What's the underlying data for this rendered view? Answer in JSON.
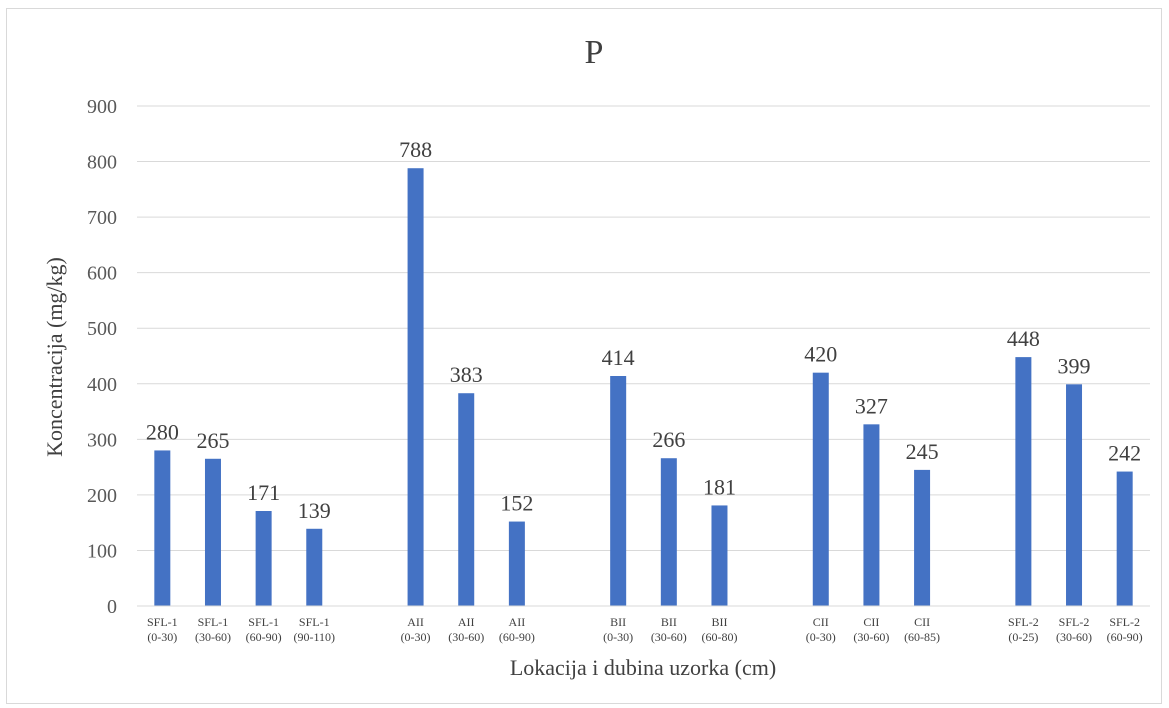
{
  "chart_data": {
    "type": "bar",
    "title": "P",
    "xlabel": "Lokacija i dubina uzorka (cm)",
    "ylabel": "Koncentracija (mg/kg)",
    "ylim": [
      0,
      900
    ],
    "yticks": [
      0,
      100,
      200,
      300,
      400,
      500,
      600,
      700,
      800,
      900
    ],
    "grid": true,
    "legend": "none",
    "bar_color": "#4472c4",
    "categories": [
      [
        "SFL-1",
        "(0-30)"
      ],
      [
        "SFL-1",
        "(30-60)"
      ],
      [
        "SFL-1",
        "(60-90)"
      ],
      [
        "SFL-1",
        "(90-110)"
      ],
      [
        "",
        ""
      ],
      [
        "AII",
        "(0-30)"
      ],
      [
        "AII",
        "(30-60)"
      ],
      [
        "AII",
        "(60-90)"
      ],
      [
        "",
        ""
      ],
      [
        "BII",
        "(0-30)"
      ],
      [
        "BII",
        "(30-60)"
      ],
      [
        "BII",
        "(60-80)"
      ],
      [
        "",
        ""
      ],
      [
        "CII",
        "(0-30)"
      ],
      [
        "CII",
        "(30-60)"
      ],
      [
        "CII",
        "(60-85)"
      ],
      [
        "",
        ""
      ],
      [
        "SFL-2",
        "(0-25)"
      ],
      [
        "SFL-2",
        "(30-60)"
      ],
      [
        "SFL-2",
        "(60-90)"
      ]
    ],
    "values": [
      280,
      265,
      171,
      139,
      null,
      788,
      383,
      152,
      null,
      414,
      266,
      181,
      null,
      420,
      327,
      245,
      null,
      448,
      399,
      242
    ]
  }
}
